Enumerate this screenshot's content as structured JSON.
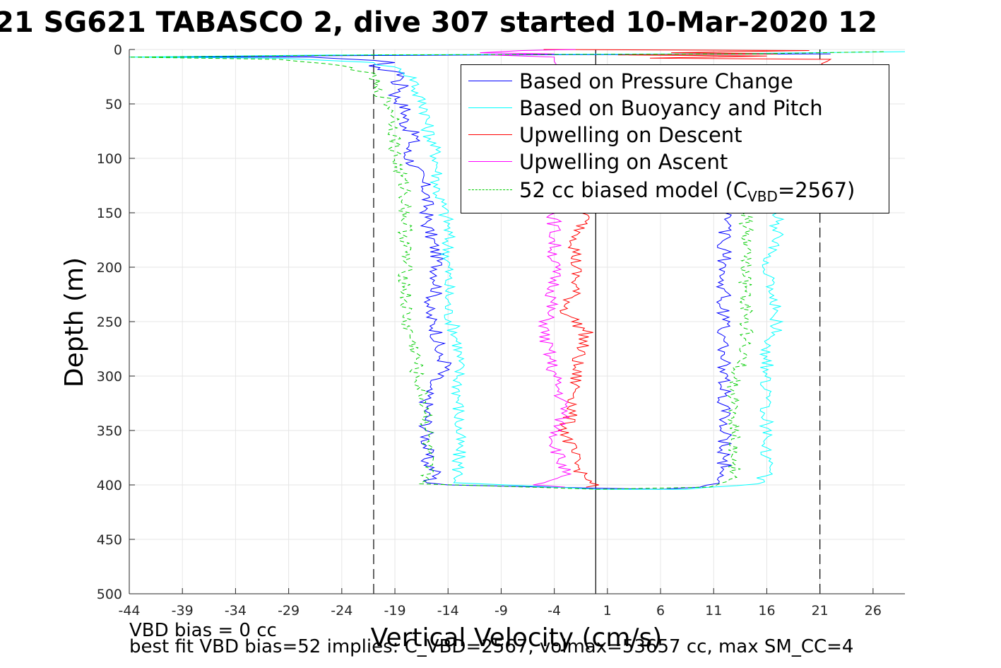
{
  "chart_data": {
    "type": "line",
    "title": "21 SG621 TABASCO 2, dive 307 started 10-Mar-2020 12",
    "xlabel": "Vertical Velocity (cm/s)",
    "ylabel": "Depth (m)",
    "xlim": [
      -44,
      29
    ],
    "ylim": [
      0,
      500
    ],
    "y_reversed": true,
    "grid": true,
    "legend_position": "top-right",
    "x_ticks": [
      "-44",
      "-39",
      "-34",
      "-29",
      "-24",
      "-19",
      "-14",
      "-9",
      "-4",
      "1",
      "6",
      "11",
      "16",
      "21",
      "26"
    ],
    "y_ticks": [
      "0",
      "50",
      "100",
      "150",
      "200",
      "250",
      "300",
      "350",
      "400",
      "450",
      "500"
    ],
    "x_tick_values": [
      -44,
      -39,
      -34,
      -29,
      -24,
      -19,
      -14,
      -9,
      -4,
      1,
      6,
      11,
      16,
      21,
      26
    ],
    "y_tick_values": [
      0,
      50,
      100,
      150,
      200,
      250,
      300,
      350,
      400,
      450,
      500
    ],
    "reference_lines": [
      {
        "axis": "x",
        "value": -21,
        "style": "dashed",
        "color": "#000000"
      },
      {
        "axis": "x",
        "value": 21,
        "style": "dashed",
        "color": "#000000"
      },
      {
        "axis": "x",
        "value": -0.1,
        "style": "solid",
        "color": "#000000"
      }
    ],
    "series": [
      {
        "name": "Based on Pressure Change",
        "color": "#0000ff",
        "style": "solid",
        "points": [
          [
            22,
            4
          ],
          [
            -10,
            5
          ],
          [
            -30,
            6
          ],
          [
            -43,
            7
          ],
          [
            -27,
            7
          ],
          [
            -21,
            10
          ],
          [
            -19,
            12
          ],
          [
            -22,
            15
          ],
          [
            -19,
            20
          ],
          [
            -18,
            25
          ],
          [
            -19,
            30
          ],
          [
            -18,
            35
          ],
          [
            -19,
            42
          ],
          [
            -18,
            55
          ],
          [
            -18,
            70
          ],
          [
            -17,
            80
          ],
          [
            -18,
            95
          ],
          [
            -17,
            110
          ],
          [
            -16,
            130
          ],
          [
            -16,
            160
          ],
          [
            -15,
            190
          ],
          [
            -15,
            220
          ],
          [
            -16,
            240
          ],
          [
            -15,
            260
          ],
          [
            -15,
            280
          ],
          [
            -14,
            290
          ],
          [
            -16,
            310
          ],
          [
            -16,
            350
          ],
          [
            -16,
            380
          ],
          [
            -15,
            390
          ],
          [
            -16,
            398
          ],
          [
            -14,
            400
          ],
          [
            0,
            403
          ],
          [
            6,
            404
          ],
          [
            10,
            402
          ],
          [
            12,
            395
          ],
          [
            12,
            380
          ],
          [
            12,
            350
          ],
          [
            12,
            330
          ],
          [
            12,
            300
          ],
          [
            12,
            270
          ],
          [
            12,
            240
          ],
          [
            12,
            200
          ],
          [
            12,
            170
          ],
          [
            12,
            150
          ]
        ]
      },
      {
        "name": "Based on Buoyancy and Pitch",
        "color": "#00ffff",
        "style": "solid",
        "points": [
          [
            29,
            2
          ],
          [
            10,
            4
          ],
          [
            -25,
            5
          ],
          [
            -44,
            7
          ],
          [
            -30,
            8
          ],
          [
            -21,
            12
          ],
          [
            -18,
            20
          ],
          [
            -17,
            30
          ],
          [
            -17,
            40
          ],
          [
            -16,
            55
          ],
          [
            -16,
            70
          ],
          [
            -15,
            100
          ],
          [
            -15,
            130
          ],
          [
            -14,
            160
          ],
          [
            -14,
            200
          ],
          [
            -14,
            240
          ],
          [
            -13,
            270
          ],
          [
            -13,
            300
          ],
          [
            -13,
            350
          ],
          [
            -13,
            398
          ],
          [
            0,
            404
          ],
          [
            8,
            404
          ],
          [
            15,
            399
          ],
          [
            16,
            390
          ],
          [
            16,
            370
          ],
          [
            16,
            340
          ],
          [
            16,
            300
          ],
          [
            16,
            280
          ],
          [
            17,
            250
          ],
          [
            16,
            200
          ],
          [
            17,
            170
          ],
          [
            17,
            150
          ]
        ]
      },
      {
        "name": "Upwelling on Descent",
        "color": "#ff0000",
        "style": "solid",
        "points": [
          [
            -5,
            0
          ],
          [
            20,
            1
          ],
          [
            7,
            3
          ],
          [
            17,
            4
          ],
          [
            2,
            5
          ],
          [
            16,
            6
          ],
          [
            5,
            8
          ],
          [
            22,
            9
          ],
          [
            -1,
            150
          ],
          [
            -2,
            180
          ],
          [
            -2,
            220
          ],
          [
            -3,
            240
          ],
          [
            -1,
            260
          ],
          [
            -2,
            290
          ],
          [
            -2,
            320
          ],
          [
            -3,
            350
          ],
          [
            -2,
            380
          ],
          [
            -1,
            395
          ],
          [
            0,
            398
          ],
          [
            -1,
            402
          ]
        ]
      },
      {
        "name": "Upwelling on Ascent",
        "color": "#ff00ff",
        "style": "solid",
        "points": [
          [
            -2,
            0
          ],
          [
            -7,
            1
          ],
          [
            -11,
            3
          ],
          [
            -4,
            4
          ],
          [
            -10,
            5
          ],
          [
            -4,
            7
          ],
          [
            -4,
            150
          ],
          [
            -4,
            180
          ],
          [
            -4,
            220
          ],
          [
            -5,
            260
          ],
          [
            -4,
            300
          ],
          [
            -3,
            330
          ],
          [
            -4,
            360
          ],
          [
            -3,
            390
          ],
          [
            -6,
            400
          ],
          [
            -3,
            402
          ]
        ]
      },
      {
        "name": "52 cc biased model (C",
        "color": "#00cc00",
        "style": "dashed",
        "points": [
          [
            27,
            2
          ],
          [
            15,
            4
          ],
          [
            -20,
            5
          ],
          [
            -44,
            7
          ],
          [
            -30,
            9
          ],
          [
            -24,
            15
          ],
          [
            -22,
            20
          ],
          [
            -21,
            25
          ],
          [
            -21,
            35
          ],
          [
            -20,
            45
          ],
          [
            -19,
            60
          ],
          [
            -19,
            80
          ],
          [
            -19,
            100
          ],
          [
            -18,
            130
          ],
          [
            -18,
            160
          ],
          [
            -18,
            200
          ],
          [
            -18,
            220
          ],
          [
            -18,
            250
          ],
          [
            -17,
            280
          ],
          [
            -17,
            300
          ],
          [
            -16,
            330
          ],
          [
            -16,
            370
          ],
          [
            -16,
            399
          ],
          [
            0,
            404
          ],
          [
            10,
            402
          ],
          [
            13,
            395
          ],
          [
            13,
            370
          ],
          [
            13,
            330
          ],
          [
            13,
            300
          ],
          [
            14,
            280
          ],
          [
            14,
            240
          ],
          [
            14,
            200
          ],
          [
            14,
            170
          ],
          [
            14,
            150
          ]
        ]
      }
    ]
  },
  "legend": {
    "items": [
      {
        "label": "Based on Pressure Change",
        "color": "#0000ff",
        "dash": "none"
      },
      {
        "label": "Based on Buoyancy and Pitch",
        "color": "#00ffff",
        "dash": "none"
      },
      {
        "label": "Upwelling on Descent",
        "color": "#ff0000",
        "dash": "none"
      },
      {
        "label": "Upwelling on Ascent",
        "color": "#ff00ff",
        "dash": "none"
      },
      {
        "label": "52 cc biased model (C",
        "sub": "VBD",
        "tail": "=2567)",
        "color": "#00cc00",
        "dash": "dashed"
      }
    ]
  },
  "footer": {
    "line1": "VBD bias = 0 cc",
    "line2": "best fit VBD bias=52 implies: C_VBD=2567, volmax=53657 cc, max SM_CC=4"
  }
}
